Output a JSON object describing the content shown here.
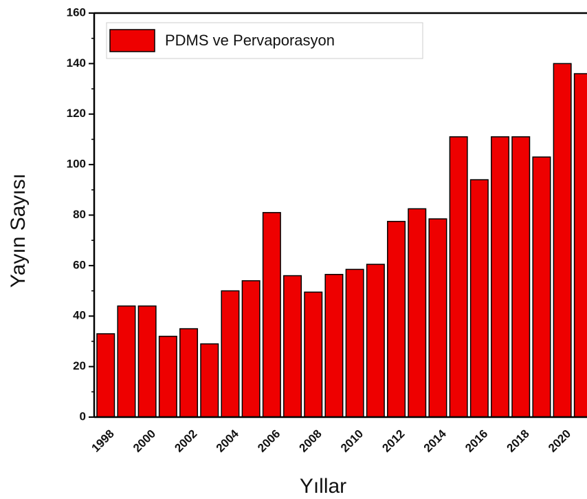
{
  "chart_data": {
    "type": "bar",
    "legend": "PDMS ve Pervaporasyon",
    "legend_position": "upper left",
    "xlabel": "Yıllar",
    "ylabel": "Yayın Sayısı",
    "color": "#ee0000",
    "categories": [
      "1998",
      null,
      "2000",
      null,
      "2002",
      null,
      "2004",
      null,
      "2006",
      null,
      "2008",
      null,
      "2010",
      null,
      "2012",
      null,
      "2014",
      null,
      "2016",
      null,
      "2018",
      null,
      "2020",
      null
    ],
    "values": [
      33,
      44,
      44,
      32,
      35,
      29,
      50,
      54,
      81,
      56,
      49.5,
      56.5,
      58.5,
      60.5,
      77.5,
      82.5,
      78.5,
      111,
      94,
      111,
      111,
      103,
      140,
      136
    ],
    "ylim": [
      0,
      160
    ],
    "yticks": [
      0,
      20,
      40,
      60,
      80,
      100,
      120,
      140,
      160
    ]
  }
}
